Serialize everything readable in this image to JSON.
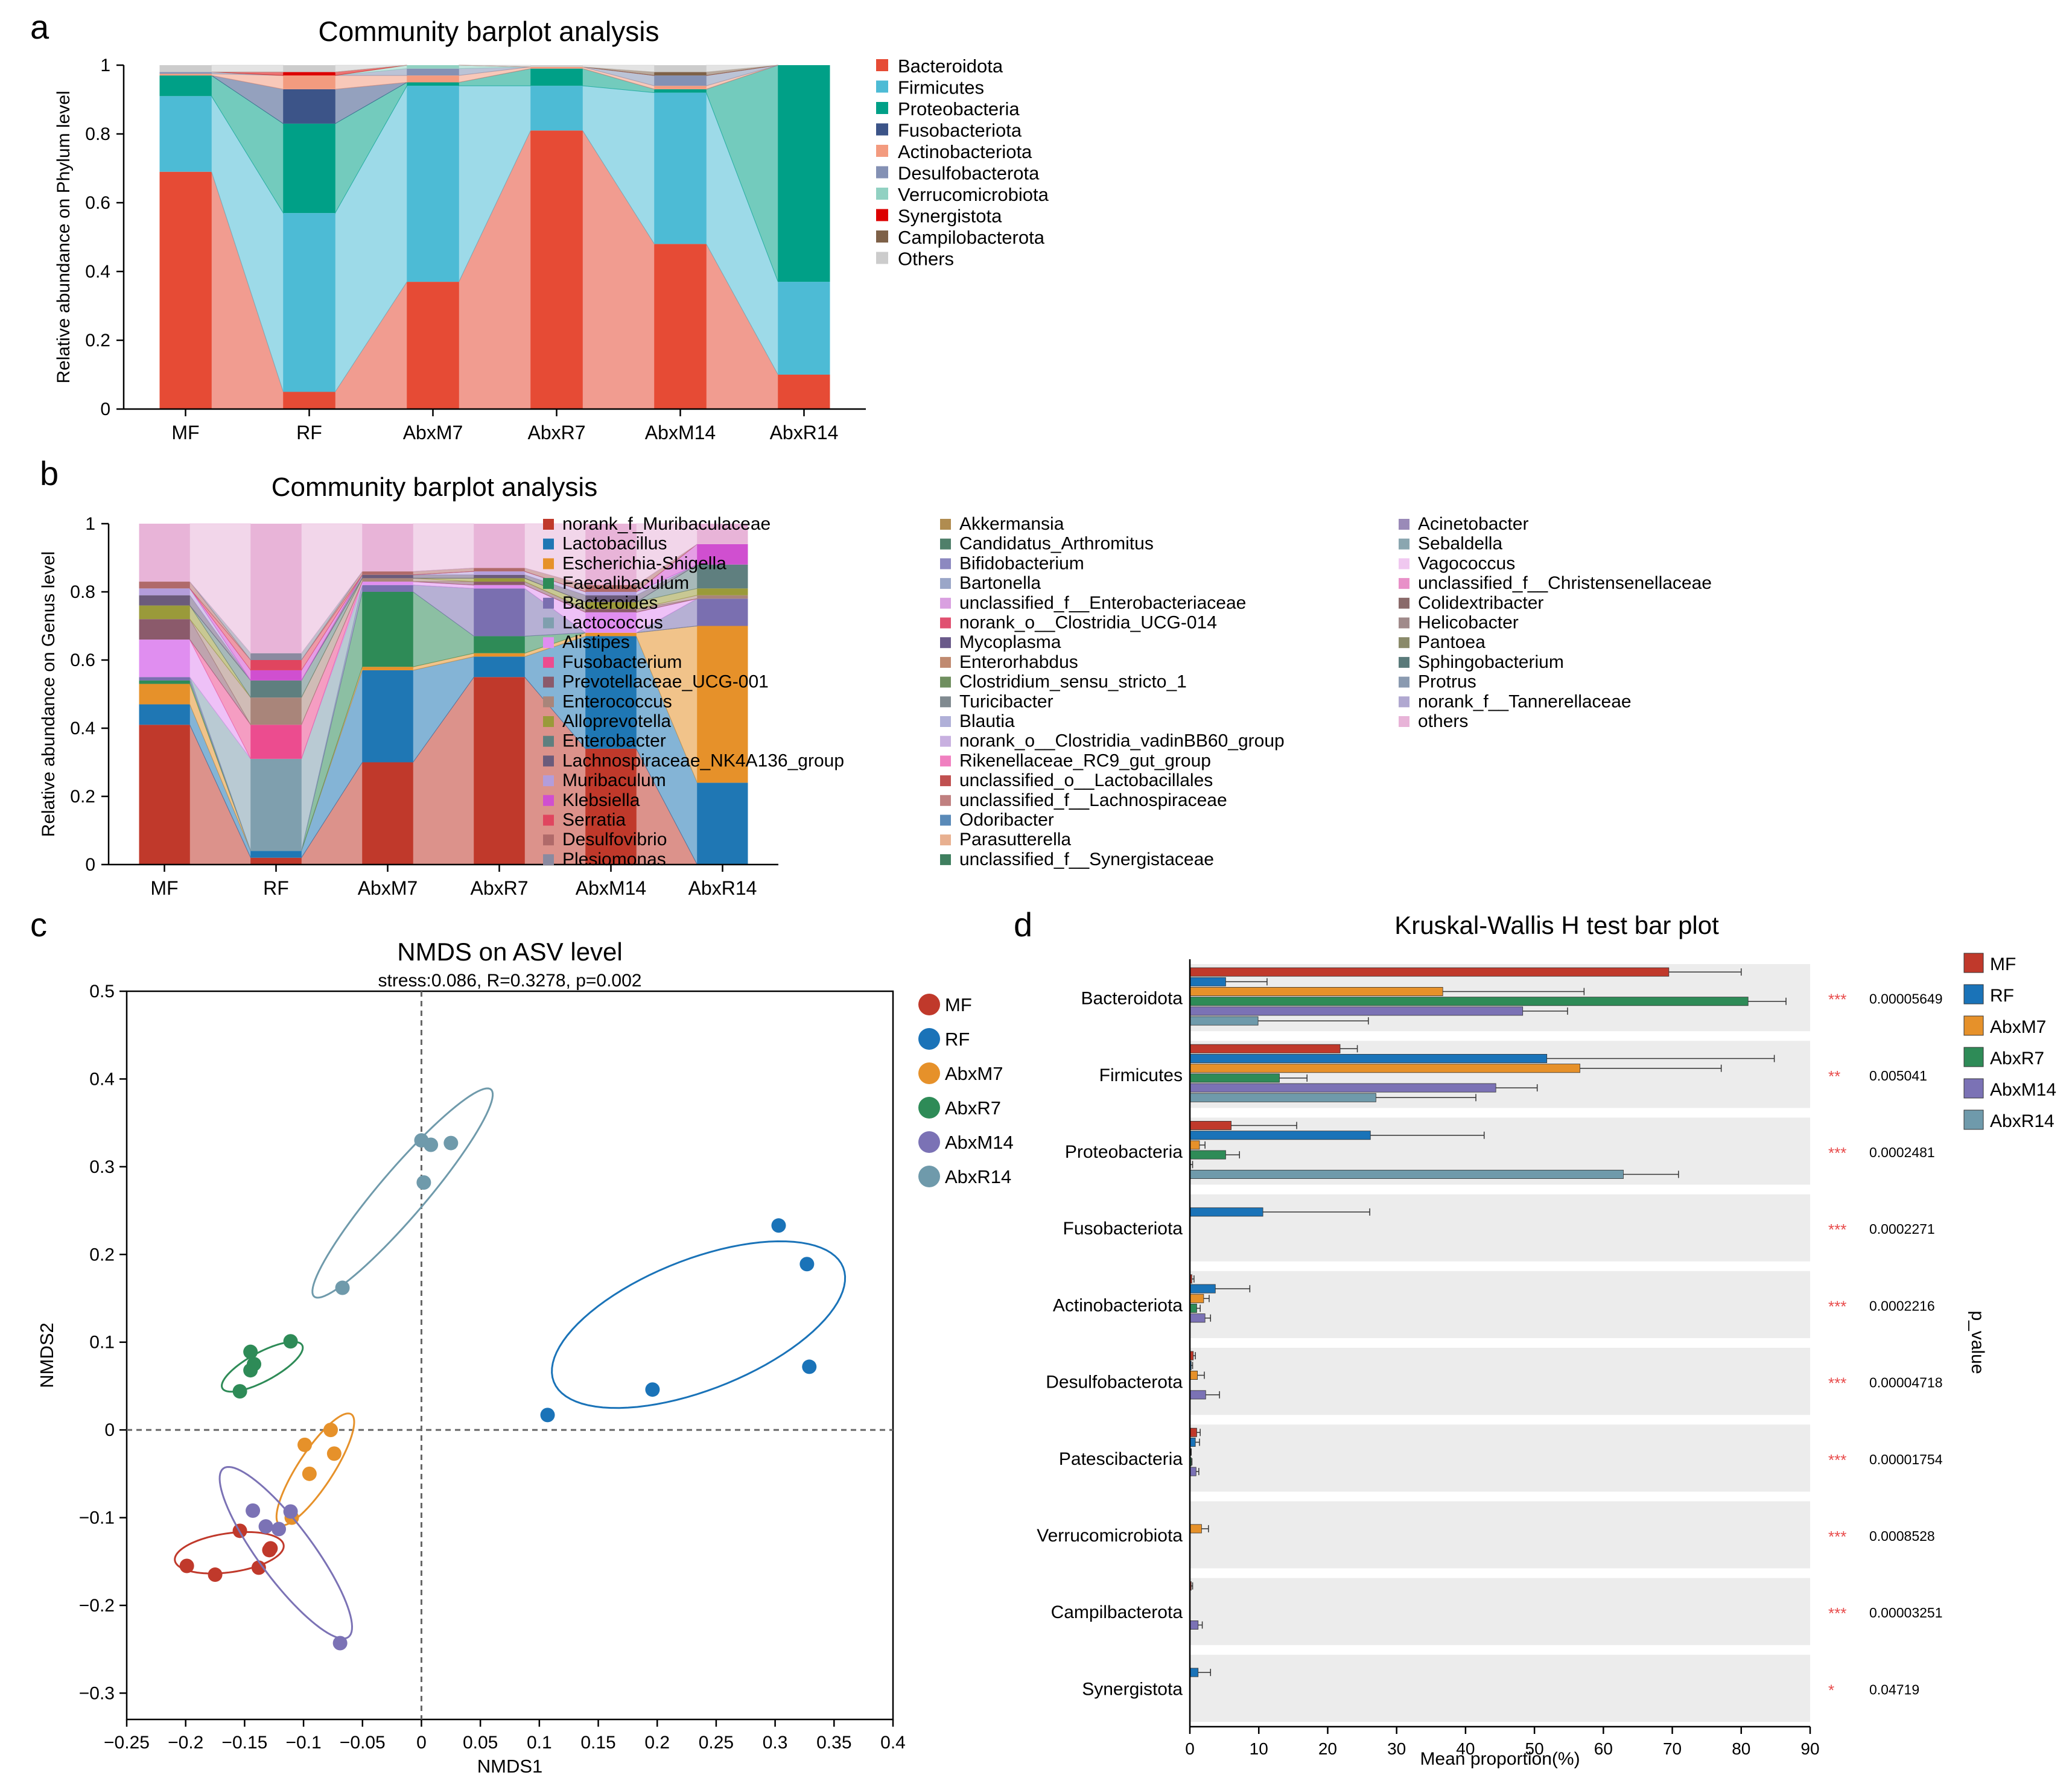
{
  "panels": {
    "a": "a",
    "b": "b",
    "c": "c",
    "d": "d"
  },
  "chart_data": [
    {
      "id": "a",
      "type": "area",
      "title": "Community barplot analysis",
      "ylabel": "Relative abundance on Phylum level",
      "xlabel": "",
      "ylim": [
        0,
        1
      ],
      "yticks": [
        "0",
        "0.2",
        "0.4",
        "0.6",
        "0.8",
        "1"
      ],
      "categories": [
        "MF",
        "RF",
        "AbxM7",
        "AbxR7",
        "AbxM14",
        "AbxR14"
      ],
      "legend_position": "right",
      "series": [
        {
          "name": "Bacteroidota",
          "color": "#e64b35",
          "values": [
            0.69,
            0.05,
            0.37,
            0.81,
            0.48,
            0.1
          ]
        },
        {
          "name": "Firmicutes",
          "color": "#4dbbd5",
          "values": [
            0.22,
            0.52,
            0.57,
            0.13,
            0.44,
            0.27
          ]
        },
        {
          "name": "Proteobacteria",
          "color": "#00a087",
          "values": [
            0.06,
            0.26,
            0.01,
            0.05,
            0.01,
            0.63
          ]
        },
        {
          "name": "Fusobacteriota",
          "color": "#3c5488",
          "values": [
            0.0,
            0.1,
            0.0,
            0.0,
            0.0,
            0.0
          ]
        },
        {
          "name": "Actinobacteriota",
          "color": "#f39b7f",
          "values": [
            0.005,
            0.04,
            0.02,
            0.005,
            0.01,
            0.0
          ]
        },
        {
          "name": "Desulfobacterota",
          "color": "#8491b4",
          "values": [
            0.005,
            0.0,
            0.02,
            0.0,
            0.03,
            0.0
          ]
        },
        {
          "name": "Verrucomicrobiota",
          "color": "#91d1c2",
          "values": [
            0.0,
            0.0,
            0.01,
            0.0,
            0.0,
            0.0
          ]
        },
        {
          "name": "Synergistota",
          "color": "#dc0000",
          "values": [
            0.0,
            0.01,
            0.0,
            0.0,
            0.0,
            0.0
          ]
        },
        {
          "name": "Campilobacterota",
          "color": "#7e6148",
          "values": [
            0.0,
            0.0,
            0.0,
            0.0,
            0.01,
            0.0
          ]
        },
        {
          "name": "Others",
          "color": "#cccccc",
          "values": [
            0.02,
            0.02,
            0.0,
            0.005,
            0.02,
            0.0
          ]
        }
      ]
    },
    {
      "id": "b",
      "type": "area",
      "title": "Community barplot analysis",
      "ylabel": "Relative abundance on Genus level",
      "xlabel": "",
      "ylim": [
        0,
        1
      ],
      "yticks": [
        "0",
        "0.2",
        "0.4",
        "0.6",
        "0.8",
        "1"
      ],
      "categories": [
        "MF",
        "RF",
        "AbxM7",
        "AbxR7",
        "AbxM14",
        "AbxR14"
      ],
      "legend_position": "right",
      "series": [
        {
          "name": "norank_f_Muribaculaceae",
          "color": "#c0392b",
          "values": [
            0.41,
            0.02,
            0.3,
            0.55,
            0.34,
            0.0
          ]
        },
        {
          "name": "Lactobacillus",
          "color": "#1f77b4",
          "values": [
            0.06,
            0.02,
            0.27,
            0.06,
            0.33,
            0.24
          ]
        },
        {
          "name": "Escherichia-Shigella",
          "color": "#e6912a",
          "values": [
            0.06,
            0.0,
            0.01,
            0.01,
            0.01,
            0.46
          ]
        },
        {
          "name": "Faecalibaculum",
          "color": "#2e8b57",
          "values": [
            0.01,
            0.0,
            0.22,
            0.05,
            0.0,
            0.0
          ]
        },
        {
          "name": "Bacteroides",
          "color": "#7a6fb0",
          "values": [
            0.01,
            0.0,
            0.02,
            0.14,
            0.0,
            0.08
          ]
        },
        {
          "name": "Lactococcus",
          "color": "#7f9fae",
          "values": [
            0.0,
            0.27,
            0.0,
            0.0,
            0.0,
            0.0
          ]
        },
        {
          "name": "Alistipes",
          "color": "#e08ef0",
          "values": [
            0.11,
            0.0,
            0.01,
            0.01,
            0.06,
            0.0
          ]
        },
        {
          "name": "Fusobacterium",
          "color": "#ec4c8f",
          "values": [
            0.0,
            0.1,
            0.0,
            0.0,
            0.0,
            0.0
          ]
        },
        {
          "name": "Prevotellaceae_UCG-001",
          "color": "#8b5a6b",
          "values": [
            0.06,
            0.0,
            0.0,
            0.01,
            0.01,
            0.0
          ]
        },
        {
          "name": "Enterococcus",
          "color": "#a9857a",
          "values": [
            0.0,
            0.08,
            0.01,
            0.0,
            0.0,
            0.01
          ]
        },
        {
          "name": "Alloprevotella",
          "color": "#9a9a3a",
          "values": [
            0.04,
            0.0,
            0.0,
            0.01,
            0.02,
            0.02
          ]
        },
        {
          "name": "Enterobacter",
          "color": "#5f7f7f",
          "values": [
            0.0,
            0.05,
            0.0,
            0.0,
            0.0,
            0.07
          ]
        },
        {
          "name": "Lachnospiraceae_NK4A136_group",
          "color": "#6b5b7b",
          "values": [
            0.03,
            0.0,
            0.01,
            0.01,
            0.02,
            0.0
          ]
        },
        {
          "name": "Muribaculum",
          "color": "#b39ddb",
          "values": [
            0.02,
            0.0,
            0.0,
            0.01,
            0.01,
            0.0
          ]
        },
        {
          "name": "Klebsiella",
          "color": "#d04fd0",
          "values": [
            0.0,
            0.03,
            0.0,
            0.0,
            0.0,
            0.06
          ]
        },
        {
          "name": "Serratia",
          "color": "#e0455f",
          "values": [
            0.0,
            0.03,
            0.0,
            0.0,
            0.0,
            0.0
          ]
        },
        {
          "name": "Desulfovibrio",
          "color": "#b06a6a",
          "values": [
            0.02,
            0.0,
            0.01,
            0.01,
            0.02,
            0.0
          ]
        },
        {
          "name": "Plesiomonas",
          "color": "#8a8aa0",
          "values": [
            0.0,
            0.02,
            0.0,
            0.0,
            0.0,
            0.0
          ]
        },
        {
          "name": "others",
          "color": "#e8b4d8",
          "values": [
            0.17,
            0.38,
            0.14,
            0.13,
            0.18,
            0.06
          ]
        }
      ]
    },
    {
      "id": "c",
      "type": "scatter",
      "title": "NMDS on ASV level",
      "subtitle": "stress:0.086, R=0.3278, p=0.002",
      "xlabel": "NMDS1",
      "ylabel": "NMDS2",
      "xlim": [
        -0.25,
        0.4
      ],
      "ylim": [
        -0.33,
        0.5
      ],
      "xticks": [
        -0.25,
        -0.2,
        -0.15,
        -0.1,
        -0.05,
        0,
        0.05,
        0.1,
        0.15,
        0.2,
        0.25,
        0.3,
        0.35,
        0.4
      ],
      "xtick_labels": [
        "−0.25",
        "−0.2",
        "−0.15",
        "−0.1",
        "−0.05",
        "0",
        "0.05",
        "0.1",
        "0.15",
        "0.2",
        "0.25",
        "0.3",
        "0.35",
        "0.4"
      ],
      "yticks": [
        -0.3,
        -0.2,
        -0.1,
        0,
        0.1,
        0.2,
        0.3,
        0.4,
        0.5
      ],
      "ytick_labels": [
        "−0.3",
        "−0.2",
        "−0.1",
        "0",
        "0.1",
        "0.2",
        "0.3",
        "0.4",
        "0.5"
      ],
      "legend_position": "right",
      "series": [
        {
          "name": "MF",
          "color": "#c0392b",
          "points": [
            [
              -0.199,
              -0.155
            ],
            [
              -0.175,
              -0.165
            ],
            [
              -0.154,
              -0.115
            ],
            [
              -0.138,
              -0.157
            ],
            [
              -0.129,
              -0.137
            ],
            [
              -0.128,
              -0.135
            ]
          ],
          "ellipse": {
            "cx": -0.163,
            "cy": -0.14,
            "a": 0.047,
            "b": 0.022,
            "angle": 12
          }
        },
        {
          "name": "RF",
          "color": "#1a73b8",
          "points": [
            [
              0.107,
              0.017
            ],
            [
              0.196,
              0.046
            ],
            [
              0.303,
              0.233
            ],
            [
              0.327,
              0.189
            ],
            [
              0.329,
              0.072
            ]
          ],
          "ellipse": {
            "cx": 0.235,
            "cy": 0.12,
            "a": 0.14,
            "b": 0.07,
            "angle": 32
          }
        },
        {
          "name": "AbxM7",
          "color": "#e6912a",
          "points": [
            [
              -0.099,
              -0.017
            ],
            [
              -0.095,
              -0.05
            ],
            [
              -0.077,
              0.0
            ],
            [
              -0.074,
              -0.027
            ],
            [
              -0.11,
              -0.1
            ]
          ],
          "ellipse": {
            "cx": -0.09,
            "cy": -0.045,
            "a": 0.07,
            "b": 0.016,
            "angle": 65
          }
        },
        {
          "name": "AbxR7",
          "color": "#2e8b57",
          "points": [
            [
              -0.154,
              0.044
            ],
            [
              -0.145,
              0.068
            ],
            [
              -0.142,
              0.075
            ],
            [
              -0.145,
              0.089
            ],
            [
              -0.111,
              0.101
            ]
          ],
          "ellipse": {
            "cx": -0.135,
            "cy": 0.072,
            "a": 0.042,
            "b": 0.015,
            "angle": 38
          }
        },
        {
          "name": "AbxM14",
          "color": "#7b72b5",
          "points": [
            [
              -0.143,
              -0.092
            ],
            [
              -0.132,
              -0.11
            ],
            [
              -0.121,
              -0.113
            ],
            [
              -0.111,
              -0.093
            ],
            [
              -0.069,
              -0.243
            ]
          ],
          "ellipse": {
            "cx": -0.115,
            "cy": -0.14,
            "a": 0.11,
            "b": 0.025,
            "angle": -62
          }
        },
        {
          "name": "AbxR14",
          "color": "#6f9aab",
          "points": [
            [
              -0.067,
              0.162
            ],
            [
              0.002,
              0.282
            ],
            [
              0.0,
              0.33
            ],
            [
              0.008,
              0.325
            ],
            [
              0.025,
              0.327
            ]
          ],
          "ellipse": {
            "cx": -0.016,
            "cy": 0.27,
            "a": 0.14,
            "b": 0.022,
            "angle": 58
          }
        }
      ]
    },
    {
      "id": "d",
      "type": "bar",
      "title": "Kruskal-Wallis H test bar plot",
      "xlabel": "Mean proportion(%)",
      "ylabel": "",
      "right_label": "p_value",
      "xlim": [
        0,
        90
      ],
      "xticks": [
        0,
        10,
        20,
        30,
        40,
        50,
        60,
        70,
        80,
        90
      ],
      "legend_position": "top-right",
      "groups": [
        {
          "name": "MF",
          "color": "#c0392b"
        },
        {
          "name": "RF",
          "color": "#1a73b8"
        },
        {
          "name": "AbxM7",
          "color": "#e6912a"
        },
        {
          "name": "AbxR7",
          "color": "#2e8b57"
        },
        {
          "name": "AbxM14",
          "color": "#7b72b5"
        },
        {
          "name": "AbxR14",
          "color": "#6f9aab"
        }
      ],
      "categories": [
        {
          "name": "Bacteroidota",
          "stars": "***",
          "p": "0.00005649",
          "values": [
            69.5,
            5.2,
            36.7,
            81.0,
            48.3,
            9.9
          ],
          "errors": [
            10.5,
            6.0,
            20.5,
            5.5,
            6.5,
            16.0
          ]
        },
        {
          "name": "Firmicutes",
          "stars": "**",
          "p": "0.005041",
          "values": [
            21.8,
            51.8,
            56.6,
            13.0,
            44.4,
            27.0
          ],
          "errors": [
            2.5,
            33.0,
            20.5,
            4.0,
            6.0,
            14.5
          ]
        },
        {
          "name": "Proteobacteria",
          "stars": "***",
          "p": "0.0002481",
          "values": [
            6.0,
            26.2,
            1.4,
            5.2,
            0.1,
            62.9
          ],
          "errors": [
            9.5,
            16.5,
            0.8,
            2.0,
            0.3,
            8.0
          ]
        },
        {
          "name": "Fusobacteriota",
          "stars": "***",
          "p": "0.0002271",
          "values": [
            0.0,
            10.6,
            0.0,
            0.0,
            0.0,
            0.0
          ],
          "errors": [
            0.0,
            15.5,
            0.0,
            0.0,
            0.0,
            0.0
          ]
        },
        {
          "name": "Actinobacteriota",
          "stars": "***",
          "p": "0.0002216",
          "values": [
            0.3,
            3.7,
            2.0,
            1.0,
            2.2,
            0.0
          ],
          "errors": [
            0.3,
            5.0,
            0.8,
            0.5,
            0.8,
            0.0
          ]
        },
        {
          "name": "Desulfobacterota",
          "stars": "***",
          "p": "0.00004718",
          "values": [
            0.5,
            0.2,
            1.1,
            0.0,
            2.3,
            0.0
          ],
          "errors": [
            0.3,
            0.2,
            1.0,
            0.0,
            2.0,
            0.0
          ]
        },
        {
          "name": "Patescibacteria",
          "stars": "***",
          "p": "0.00001754",
          "values": [
            1.0,
            0.8,
            0.1,
            0.2,
            0.9,
            0.0
          ],
          "errors": [
            0.5,
            0.6,
            0.1,
            0.1,
            0.4,
            0.0
          ]
        },
        {
          "name": "Verrucomicrobiota",
          "stars": "***",
          "p": "0.0008528",
          "values": [
            0.0,
            0.0,
            1.7,
            0.0,
            0.0,
            0.0
          ],
          "errors": [
            0.0,
            0.0,
            1.0,
            0.0,
            0.0,
            0.0
          ]
        },
        {
          "name": "Campilbacterota",
          "stars": "***",
          "p": "0.00003251",
          "values": [
            0.2,
            0.0,
            0.0,
            0.0,
            1.2,
            0.0
          ],
          "errors": [
            0.2,
            0.0,
            0.0,
            0.0,
            0.6,
            0.0
          ]
        },
        {
          "name": "Synergistota",
          "stars": "*",
          "p": "0.04719",
          "values": [
            0.0,
            1.2,
            0.0,
            0.0,
            0.0,
            0.0
          ],
          "errors": [
            0.0,
            1.8,
            0.0,
            0.0,
            0.0,
            0.0
          ]
        }
      ]
    }
  ]
}
